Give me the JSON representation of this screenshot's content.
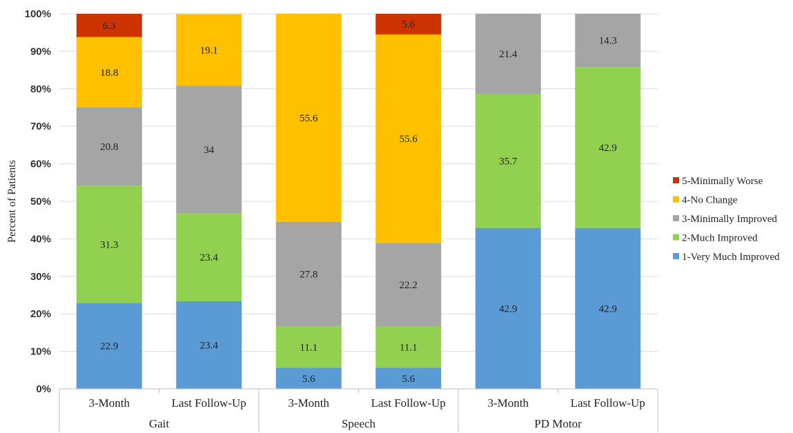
{
  "chart_data": {
    "type": "bar",
    "stacked": true,
    "ylabel": "Percent of Patients",
    "ylim": [
      0,
      100
    ],
    "y_tick_labels": [
      "0%",
      "10%",
      "20%",
      "30%",
      "40%",
      "50%",
      "60%",
      "70%",
      "80%",
      "90%",
      "100%"
    ],
    "grid": true,
    "legend_position": "right",
    "groups": [
      {
        "label": "Gait",
        "categories": [
          "3-Month",
          "Last Follow-Up"
        ]
      },
      {
        "label": "Speech",
        "categories": [
          "3-Month",
          "Last Follow-Up"
        ]
      },
      {
        "label": "PD Motor",
        "categories": [
          "3-Month",
          "Last Follow-Up"
        ]
      }
    ],
    "series": [
      {
        "name": "1-Very Much Improved",
        "color": "#5b9bd5",
        "values": [
          22.9,
          23.4,
          5.6,
          5.6,
          42.9,
          42.9
        ],
        "labels": [
          "22.9",
          "23.4",
          "5.6",
          "5.6",
          "42.9",
          "42.9"
        ]
      },
      {
        "name": "2-Much Improved",
        "color": "#92d050",
        "values": [
          31.3,
          23.4,
          11.1,
          11.1,
          35.7,
          42.9
        ],
        "labels": [
          "31.3",
          "23.4",
          "11.1",
          "11.1",
          "35.7",
          "42.9"
        ]
      },
      {
        "name": "3-Minimally Improved",
        "color": "#a5a5a5",
        "values": [
          20.8,
          34,
          27.8,
          22.2,
          21.4,
          14.3
        ],
        "labels": [
          "20.8",
          "34",
          "27.8",
          "22.2",
          "21.4",
          "14.3"
        ]
      },
      {
        "name": "4-No Change",
        "color": "#ffc000",
        "values": [
          18.8,
          19.1,
          55.6,
          55.6,
          0,
          0
        ],
        "labels": [
          "18.8",
          "19.1",
          "55.6",
          "55.6",
          "",
          ""
        ]
      },
      {
        "name": "5-Minimally Worse",
        "color": "#cc3300",
        "values": [
          6.3,
          0,
          0,
          5.6,
          0,
          0
        ],
        "labels": [
          "6.3",
          "",
          "",
          "5.6",
          "",
          ""
        ]
      }
    ],
    "legend_order": [
      "5-Minimally Worse",
      "4-No Change",
      "3-Minimally Improved",
      "2-Much Improved",
      "1-Very Much Improved"
    ]
  }
}
